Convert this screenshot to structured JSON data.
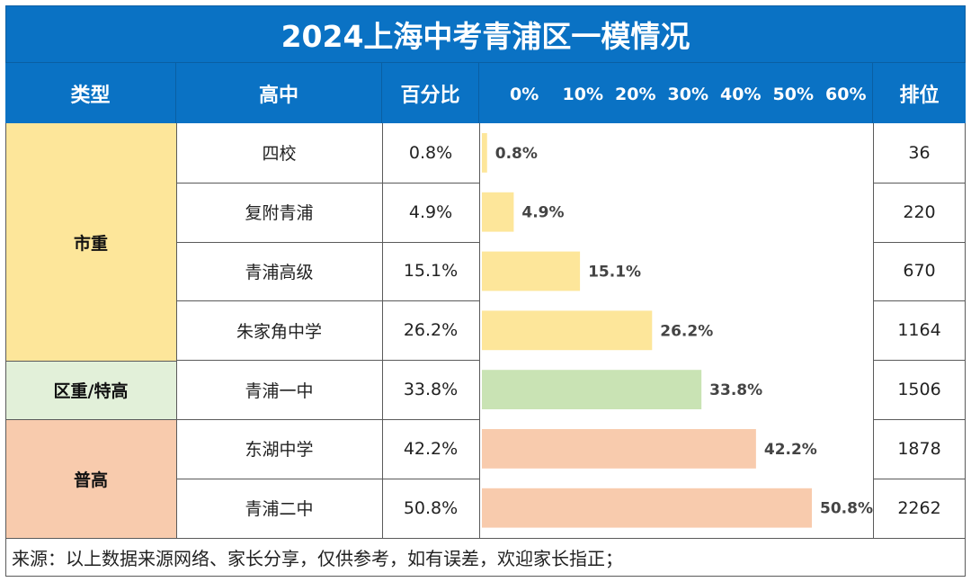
{
  "title": "2024上海中考青浦区一模情况",
  "headers": {
    "type": "类型",
    "school": "高中",
    "percent": "百分比",
    "rank": "排位"
  },
  "groups": [
    {
      "name": "市重",
      "color": "#fde69a"
    },
    {
      "name": "区重/特高",
      "color": "#e2f0d9"
    },
    {
      "name": "普高",
      "color": "#f8cbad"
    }
  ],
  "chart_data": {
    "type": "bar",
    "orientation": "horizontal",
    "categories": [
      "四校",
      "复附青浦",
      "青浦高级",
      "朱家角中学",
      "青浦一中",
      "东湖中学",
      "青浦二中"
    ],
    "values": [
      0.8,
      4.9,
      15.1,
      26.2,
      33.8,
      42.2,
      50.8
    ],
    "value_labels": [
      "0.8%",
      "4.9%",
      "15.1%",
      "26.2%",
      "33.8%",
      "42.2%",
      "50.8%"
    ],
    "ranks": [
      "36",
      "220",
      "670",
      "1164",
      "1506",
      "1878",
      "2262"
    ],
    "groups": [
      "市重",
      "市重",
      "市重",
      "市重",
      "区重/特高",
      "普高",
      "普高"
    ],
    "bar_colors": [
      "#fde69a",
      "#fde69a",
      "#fde69a",
      "#fde69a",
      "#c9e3b4",
      "#f8cbad",
      "#f8cbad"
    ],
    "x_ticks": [
      "0%",
      "10%",
      "20%",
      "30%",
      "40%",
      "50%",
      "60%"
    ],
    "xlim": [
      0,
      60
    ],
    "grid": false
  },
  "footer": "来源：以上数据来源网络、家长分享，仅供参考，如有误差，欢迎家长指正；"
}
